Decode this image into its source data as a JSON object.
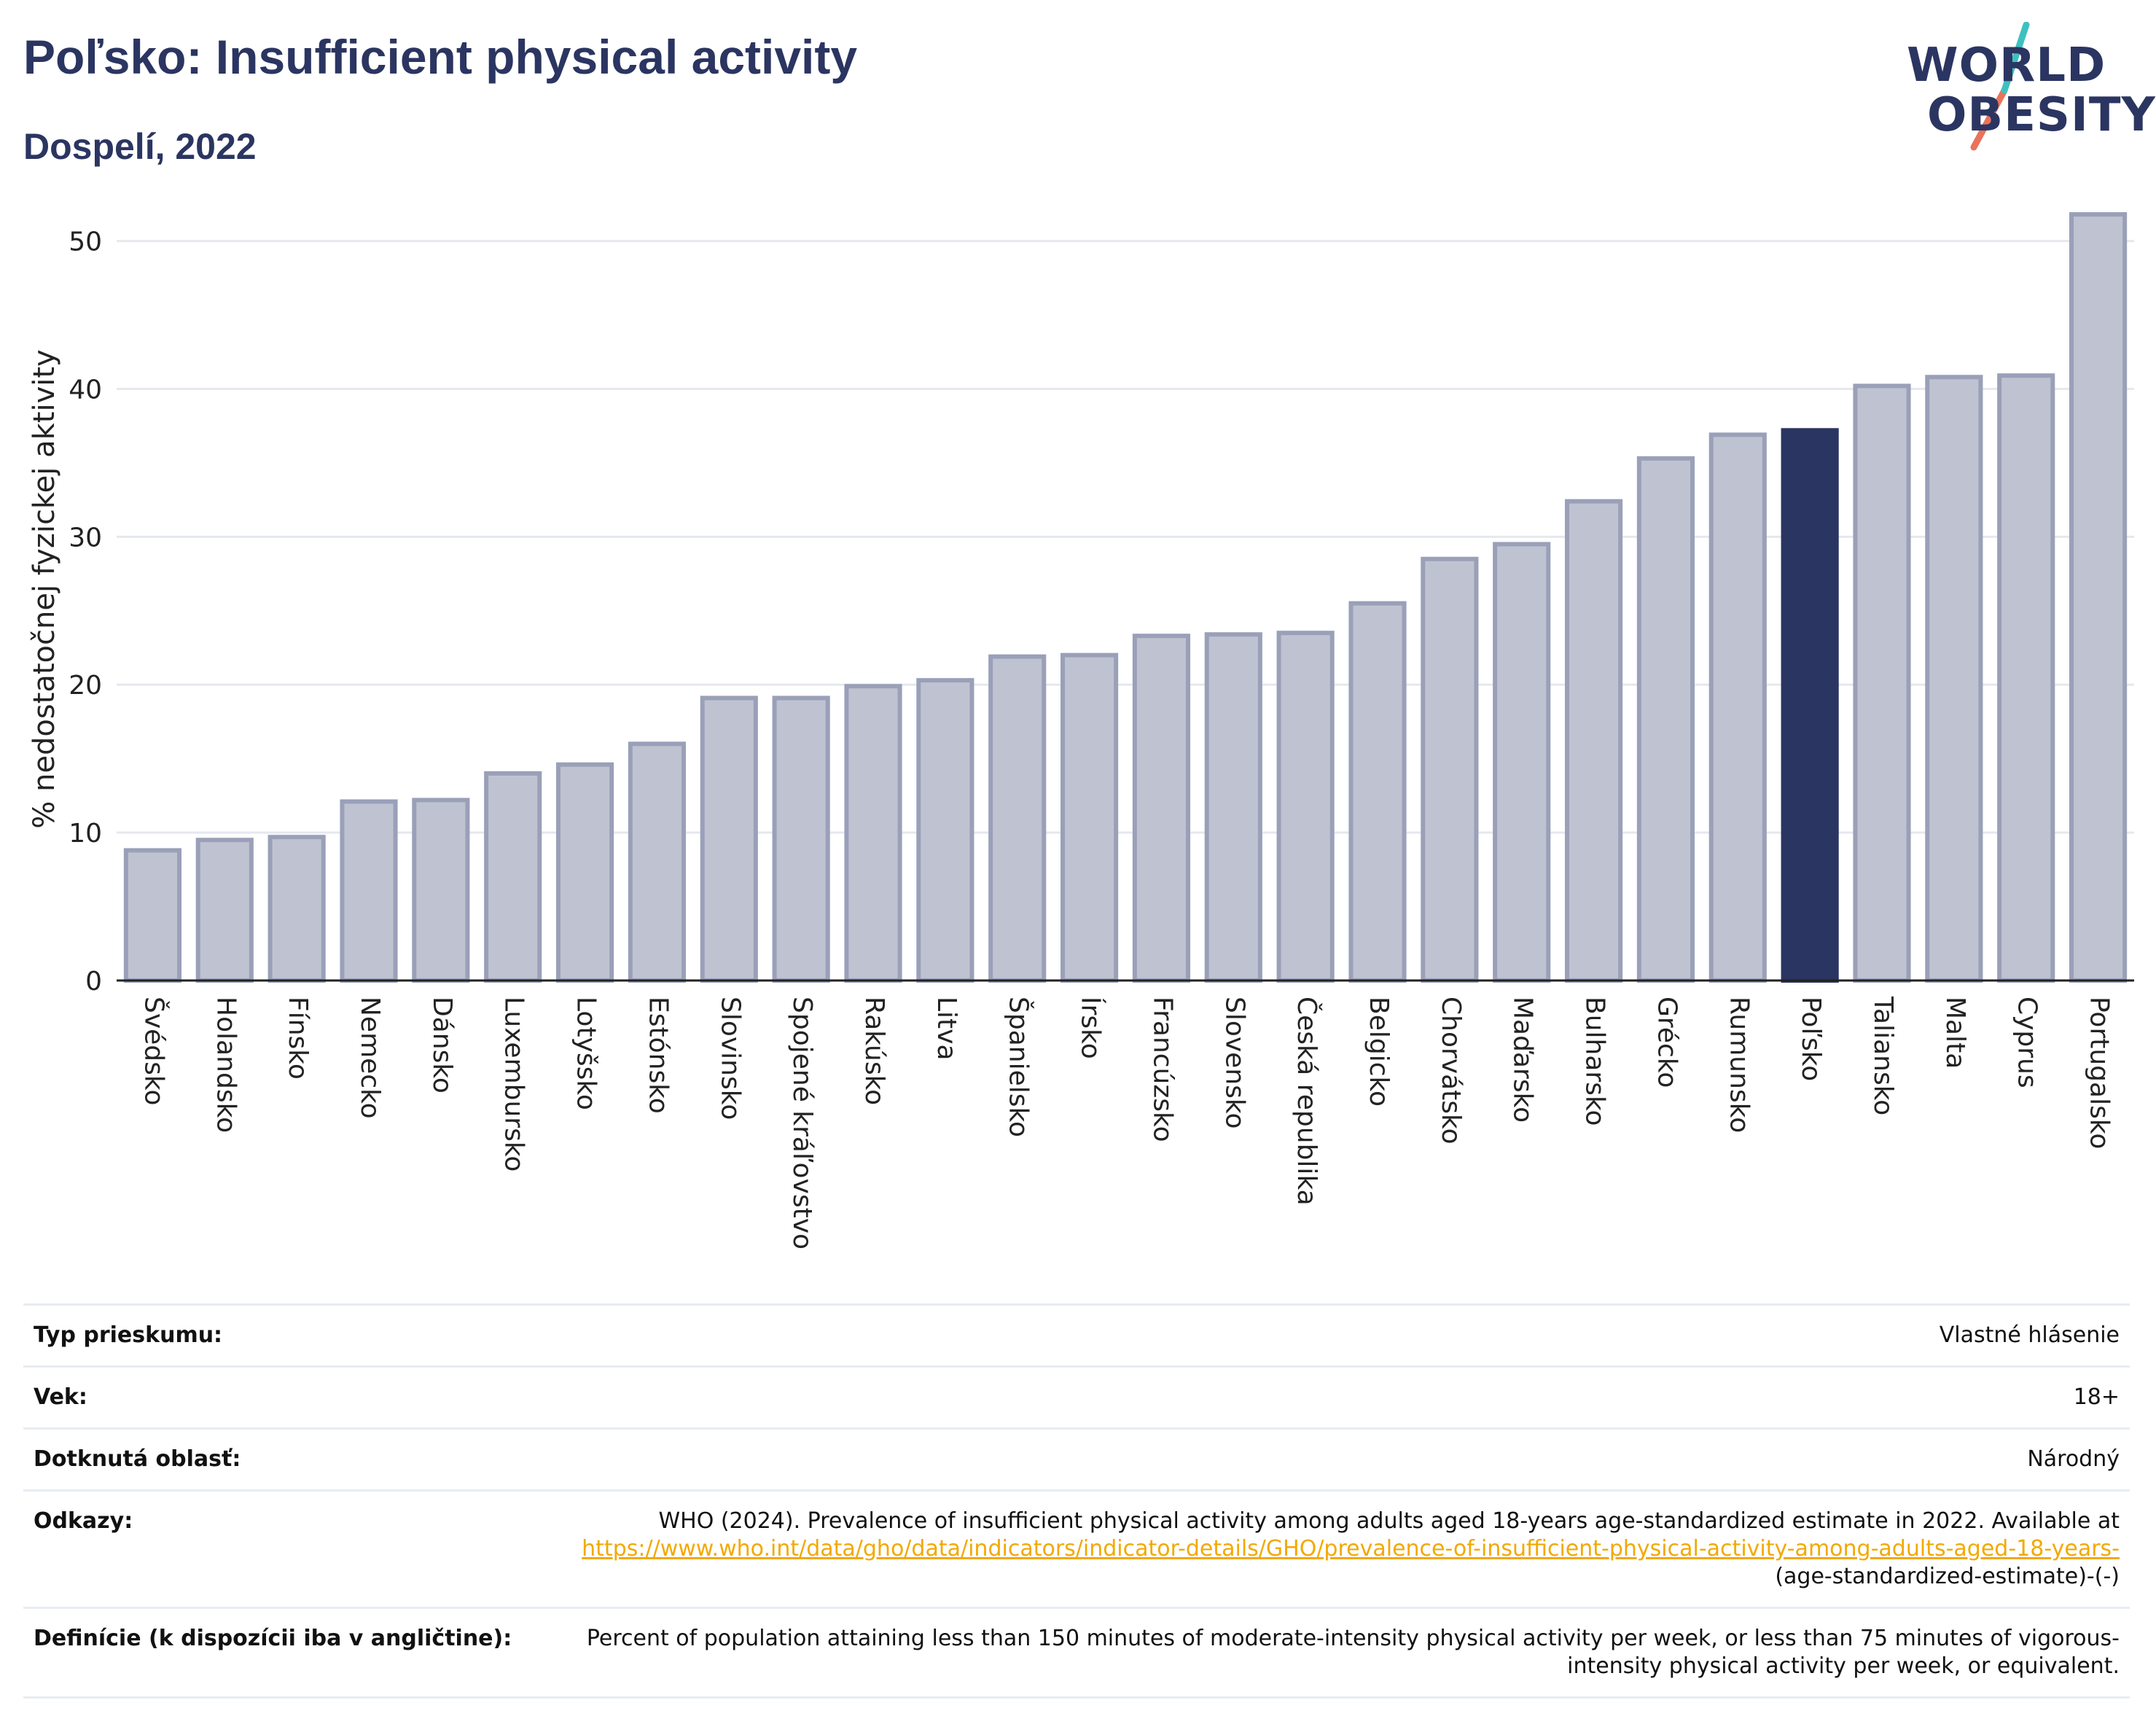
{
  "header": {
    "title": "Poľsko: Insufficient physical activity",
    "subtitle": "Dospelí, 2022"
  },
  "logo": {
    "line1": "WORLD",
    "line2": "OBESITY",
    "slash_color": "#e9735b",
    "slash_color_top": "#3fc0c0"
  },
  "colors": {
    "bar": "#bfc3d1",
    "bar_border": "#9aa0b8",
    "highlight": "#2b3561",
    "grid": "#e6e8ef"
  },
  "chart_data": {
    "type": "bar",
    "title": "Poľsko: Insufficient physical activity",
    "subtitle": "Dospelí, 2022",
    "ylabel": "% nedostatočnej fyzickej aktivity",
    "xlabel": "",
    "ylim": [
      0,
      52
    ],
    "yticks": [
      0,
      10,
      20,
      30,
      40,
      50
    ],
    "grid": true,
    "highlight": "Poľsko",
    "categories": [
      "Švédsko",
      "Holandsko",
      "Fínsko",
      "Nemecko",
      "Dánsko",
      "Luxembursko",
      "Lotyšsko",
      "Estónsko",
      "Slovinsko",
      "Spojené kráľovstvo",
      "Rakúsko",
      "Litva",
      "Španielsko",
      "Írsko",
      "Francúzsko",
      "Slovensko",
      "Česká republika",
      "Belgicko",
      "Chorvátsko",
      "Maďarsko",
      "Bulharsko",
      "Grécko",
      "Rumunsko",
      "Poľsko",
      "Taliansko",
      "Malta",
      "Cyprus",
      "Portugalsko"
    ],
    "values": [
      8.8,
      9.5,
      9.7,
      12.1,
      12.2,
      14.0,
      14.6,
      16.0,
      19.1,
      19.1,
      19.9,
      20.3,
      21.9,
      22.0,
      23.3,
      23.4,
      23.5,
      25.5,
      28.5,
      29.5,
      32.4,
      35.3,
      36.9,
      37.2,
      40.2,
      40.8,
      40.9,
      51.8
    ]
  },
  "info": {
    "survey_label": "Typ prieskumu:",
    "survey_value": "Vlastné hlásenie",
    "age_label": "Vek:",
    "age_value": "18+",
    "area_label": "Dotknutá oblasť:",
    "area_value": "Národný",
    "refs_label": "Odkazy:",
    "refs_text": "WHO (2024). Prevalence of insufficient physical activity among adults aged 18-years age-standardized estimate in 2022. Available at",
    "refs_link": "https://www.who.int/data/gho/data/indicators/indicator-details/GHO/prevalence-of-insufficient-physical-activity-among-adults-aged-18-years-",
    "refs_tail": "(age-standardized-estimate)-(-)",
    "def_label": "Definície (k dispozícii iba v angličtine):",
    "def_text": "Percent of population attaining less than 150 minutes of moderate-intensity physical activity per week, or less than 75 minutes of vigorous-intensity physical activity per week, or equivalent."
  }
}
